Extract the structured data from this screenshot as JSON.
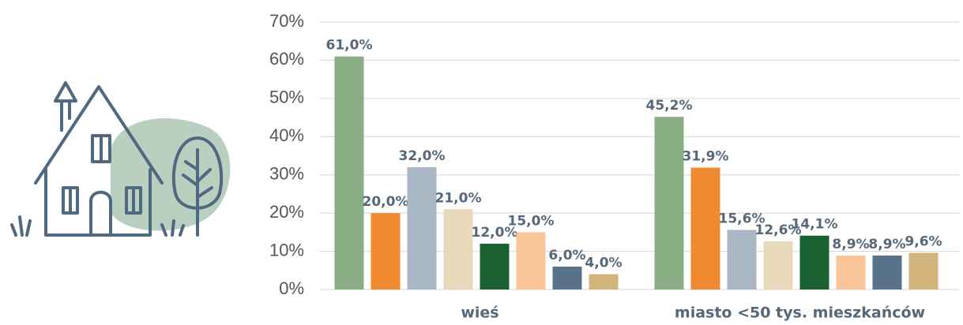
{
  "chart_data": {
    "type": "bar",
    "categories": [
      "wieś",
      "miasto <50 tys. mieszkańców"
    ],
    "series": [
      {
        "color": "#8aae84",
        "values": [
          61.0,
          45.2
        ],
        "value_labels": [
          "61,0%",
          "45,2%"
        ]
      },
      {
        "color": "#f08a30",
        "values": [
          20.0,
          31.9
        ],
        "value_labels": [
          "20,0%",
          "31,9%"
        ]
      },
      {
        "color": "#a9b6c3",
        "values": [
          32.0,
          15.6
        ],
        "value_labels": [
          "32,0%",
          "15,6%"
        ]
      },
      {
        "color": "#e9d9bb",
        "values": [
          21.0,
          12.6
        ],
        "value_labels": [
          "21,0%",
          "12,6%"
        ]
      },
      {
        "color": "#1a6131",
        "values": [
          12.0,
          14.1
        ],
        "value_labels": [
          "12,0%",
          "14,1%"
        ]
      },
      {
        "color": "#f8c498",
        "values": [
          15.0,
          8.9
        ],
        "value_labels": [
          "15,0%",
          "8,9%"
        ]
      },
      {
        "color": "#587389",
        "values": [
          6.0,
          8.9
        ],
        "value_labels": [
          "6,0%",
          "8,9%"
        ]
      },
      {
        "color": "#d3b47c",
        "values": [
          4.0,
          9.6
        ],
        "value_labels": [
          "4,0%",
          "9,6%"
        ]
      }
    ],
    "ylim": [
      0,
      70
    ],
    "yticks": [
      {
        "value": 0,
        "label": "0%"
      },
      {
        "value": 10,
        "label": "10%"
      },
      {
        "value": 20,
        "label": "20%"
      },
      {
        "value": 30,
        "label": "30%"
      },
      {
        "value": 40,
        "label": "40%"
      },
      {
        "value": 50,
        "label": "50%"
      },
      {
        "value": 60,
        "label": "60%"
      },
      {
        "value": 70,
        "label": "70%"
      }
    ],
    "grid": true
  }
}
